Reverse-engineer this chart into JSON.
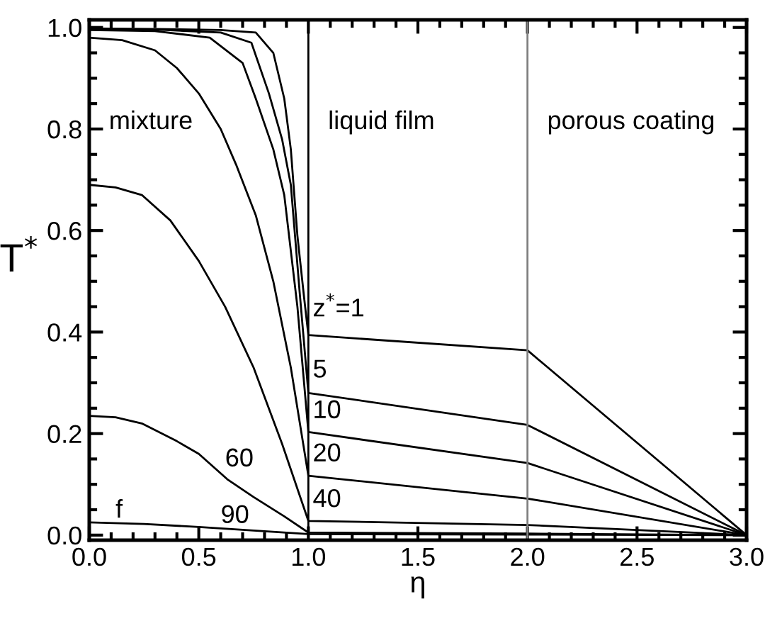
{
  "chart_data": {
    "type": "line",
    "xlabel": "η",
    "ylabel": "T$^{*}$",
    "xlim": [
      0,
      3
    ],
    "ylim": [
      -0.01,
      1.015
    ],
    "xticks": [
      {
        "value": 0,
        "label": "0.0"
      },
      0.5,
      {
        "value": 1,
        "label": "1.0"
      },
      1.5,
      {
        "value": 2,
        "label": "2.0"
      },
      2.5,
      {
        "value": 3,
        "label": "3.0"
      }
    ],
    "yticks": [
      {
        "value": 0,
        "label": "0.0"
      },
      0.2,
      0.4,
      0.6,
      0.8,
      {
        "value": 1,
        "label": "1.0"
      }
    ],
    "grid": false,
    "legend": false,
    "marker": "none",
    "line_style": "solid",
    "series": [
      {
        "color": "#000000",
        "x": [
          0,
          0.3,
          0.6,
          0.76,
          0.84,
          0.89,
          0.92,
          0.95,
          0.98,
          1,
          2,
          3
        ],
        "values": [
          0.998,
          0.997,
          0.995,
          0.99,
          0.95,
          0.86,
          0.76,
          0.59,
          0.47,
          0.394,
          0.364,
          0
        ]
      },
      {
        "color": "#000000",
        "x": [
          0,
          0.3,
          0.6,
          0.74,
          0.82,
          0.88,
          0.92,
          0.96,
          1,
          2,
          3
        ],
        "values": [
          0.997,
          0.996,
          0.99,
          0.97,
          0.87,
          0.78,
          0.69,
          0.48,
          0.28,
          0.217,
          0
        ]
      },
      {
        "color": "#000000",
        "x": [
          0,
          0.3,
          0.55,
          0.7,
          0.76,
          0.84,
          0.89,
          0.95,
          1,
          2,
          3
        ],
        "values": [
          0.995,
          0.993,
          0.98,
          0.93,
          0.86,
          0.76,
          0.67,
          0.45,
          0.203,
          0.142,
          0
        ]
      },
      {
        "color": "#000000",
        "x": [
          0,
          0.15,
          0.3,
          0.4,
          0.5,
          0.6,
          0.67,
          0.76,
          0.84,
          0.92,
          1,
          2,
          3
        ],
        "values": [
          0.98,
          0.975,
          0.955,
          0.92,
          0.87,
          0.8,
          0.73,
          0.63,
          0.5,
          0.33,
          0.117,
          0.072,
          0
        ]
      },
      {
        "color": "#000000",
        "x": [
          0,
          0.12,
          0.24,
          0.37,
          0.5,
          0.62,
          0.75,
          0.88,
          1,
          2,
          3
        ],
        "values": [
          0.69,
          0.685,
          0.67,
          0.62,
          0.54,
          0.45,
          0.33,
          0.18,
          0.028,
          0.02,
          0
        ]
      },
      {
        "color": "#000000",
        "x": [
          0,
          0.12,
          0.24,
          0.4,
          0.5,
          0.63,
          0.75,
          0.89,
          1,
          2,
          3
        ],
        "values": [
          0.235,
          0.232,
          0.22,
          0.185,
          0.16,
          0.11,
          0.075,
          0.037,
          0.005,
          0.003,
          0
        ]
      },
      {
        "color": "#000000",
        "x": [
          0,
          0.25,
          0.5,
          0.75,
          1,
          2,
          3
        ],
        "values": [
          0.025,
          0.022,
          0.016,
          0.009,
          0.002,
          0.001,
          0
        ]
      }
    ],
    "ref_lines": [
      {
        "axis": "x",
        "value": 1,
        "color": "#000000"
      },
      {
        "axis": "x",
        "value": 2,
        "color": "#808080"
      }
    ],
    "annotations": [
      "mixture",
      "liquid film",
      "porous coating",
      {
        "text": "z$^{*}$=1",
        "x": 1.02,
        "y": 0.42
      },
      {
        "text": "5",
        "x": 1.02,
        "y": 0.3
      },
      {
        "text": "10",
        "x": 1.02,
        "y": 0.22
      },
      {
        "text": "20",
        "x": 1.02,
        "y": 0.135
      },
      {
        "text": "40",
        "x": 1.02,
        "y": 0.045
      },
      {
        "text": "60",
        "x": 0.62,
        "y": 0.125
      },
      {
        "text": "90",
        "x": 0.6,
        "y": 0.0136
      },
      {
        "text": "f",
        "x": 0.12,
        "y": 0.024
      }
    ]
  }
}
